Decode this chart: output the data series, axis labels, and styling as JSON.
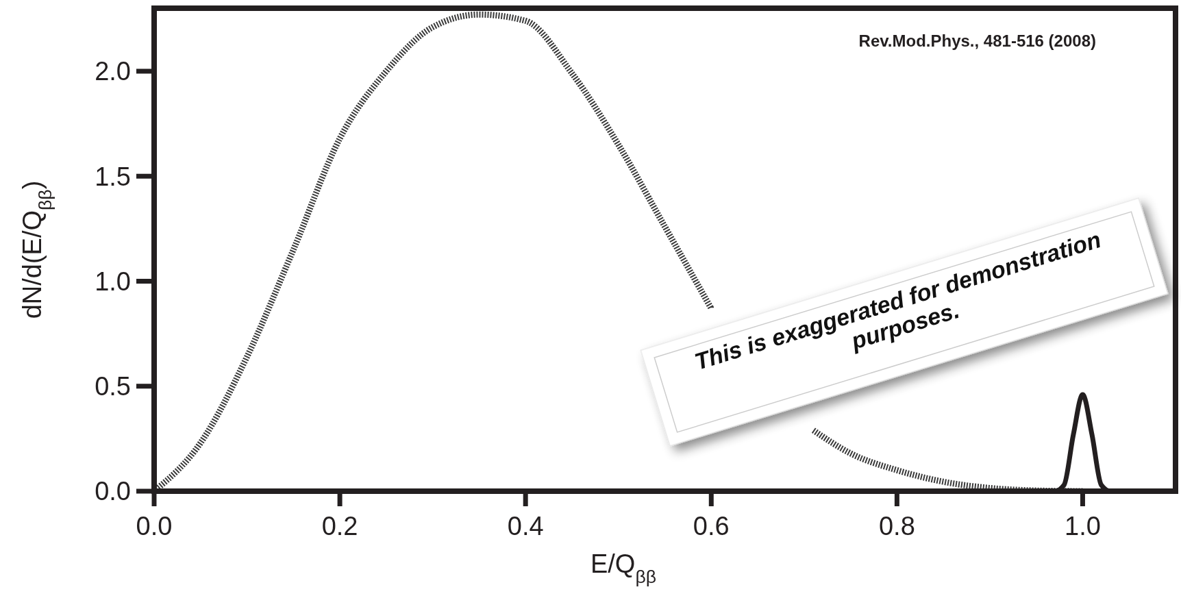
{
  "chart_data": {
    "type": "line",
    "xlabel": "E/Q$_{ββ}$",
    "ylabel": "dN/d(E/Q$_{ββ}$)",
    "xlim": [
      0,
      1.1
    ],
    "xticks": [
      {
        "value": 0,
        "label": "0.0"
      },
      0.2,
      0.4,
      0.6,
      0.8,
      {
        "value": 1,
        "label": "1.0"
      }
    ],
    "ylim": [
      0,
      2.3
    ],
    "yticks": [
      {
        "value": 0,
        "label": "0.0"
      },
      0.5,
      {
        "value": 1,
        "label": "1.0"
      },
      1.5,
      {
        "value": 2,
        "label": "2.0"
      }
    ],
    "grid": false,
    "series": [
      {
        "color": "#3a3a3a",
        "line_style": "dotted",
        "x": [
          0,
          0.05,
          0.1,
          0.15,
          0.2,
          0.25,
          0.3,
          0.35,
          0.4,
          0.45,
          0.5,
          0.55,
          0.6
        ],
        "values": [
          0,
          0.23,
          0.64,
          1.15,
          1.68,
          2.0,
          2.21,
          2.27,
          2.24,
          1.99,
          1.65,
          1.26,
          0.87
        ]
      },
      {
        "color": "#3a3a3a",
        "line_style": "dotted",
        "x": [
          0.71,
          0.75,
          0.8,
          0.85,
          0.9,
          0.95,
          1.0
        ],
        "values": [
          0.29,
          0.18,
          0.1,
          0.045,
          0.015,
          0.003,
          0
        ]
      },
      {
        "color": "#231f20",
        "line_style": "solid",
        "x": [
          0.95,
          0.97,
          0.98,
          0.99,
          1.0,
          1.01,
          1.02,
          1.03,
          1.05
        ],
        "values": [
          0,
          0,
          0.03,
          0.27,
          0.46,
          0.27,
          0.03,
          0,
          0
        ]
      }
    ],
    "annotations": [
      "Rev.Mod.Phys., 481-516 (2008)",
      "This is exaggerated for demonstration purposes."
    ]
  }
}
